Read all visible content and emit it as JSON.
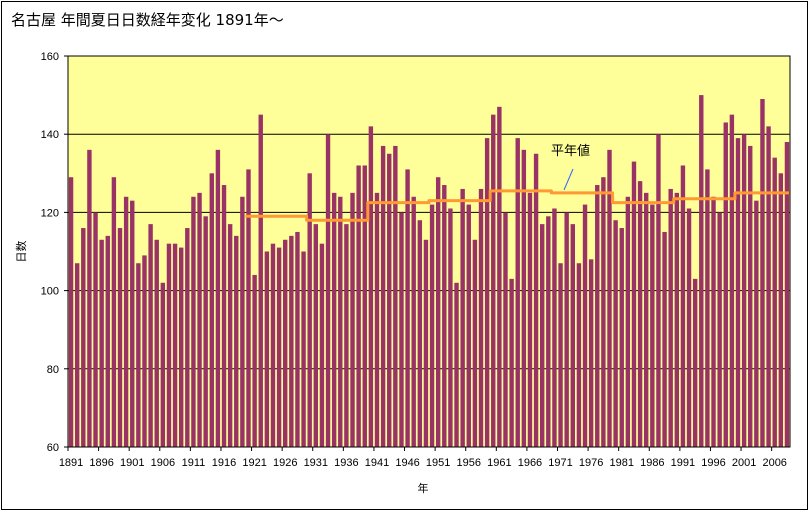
{
  "chart_data": {
    "type": "bar",
    "title": "名古屋  年間夏日日数経年変化  1891年〜",
    "xlabel": "年",
    "ylabel": "日数",
    "ylim": [
      60,
      160
    ],
    "y_ticks": [
      "60",
      "80",
      "100",
      "120",
      "140",
      "160"
    ],
    "grid": "horizontal",
    "x_tick_labels": [
      "1891",
      "1896",
      "1901",
      "1906",
      "1911",
      "1916",
      "1921",
      "1926",
      "1931",
      "1936",
      "1941",
      "1946",
      "1951",
      "1956",
      "1961",
      "1966",
      "1971",
      "1976",
      "1981",
      "1986",
      "1991",
      "1996",
      "2001",
      "2006"
    ],
    "annotation": "平年値",
    "colors": {
      "plot_bg": "#ffff99",
      "bar": "#993366",
      "normal_line": "#ff9933"
    },
    "series": [
      {
        "name": "夏日日数",
        "x": [
          1891,
          1892,
          1893,
          1894,
          1895,
          1896,
          1897,
          1898,
          1899,
          1900,
          1901,
          1902,
          1903,
          1904,
          1905,
          1906,
          1907,
          1908,
          1909,
          1910,
          1911,
          1912,
          1913,
          1914,
          1915,
          1916,
          1917,
          1918,
          1919,
          1920,
          1921,
          1922,
          1923,
          1924,
          1925,
          1926,
          1927,
          1928,
          1929,
          1930,
          1931,
          1932,
          1933,
          1934,
          1935,
          1936,
          1937,
          1938,
          1939,
          1940,
          1941,
          1942,
          1943,
          1944,
          1945,
          1946,
          1947,
          1948,
          1949,
          1950,
          1951,
          1952,
          1953,
          1954,
          1955,
          1956,
          1957,
          1958,
          1959,
          1960,
          1961,
          1962,
          1963,
          1964,
          1965,
          1966,
          1967,
          1968,
          1969,
          1970,
          1971,
          1972,
          1973,
          1974,
          1975,
          1976,
          1977,
          1978,
          1979,
          1980,
          1981,
          1982,
          1983,
          1984,
          1985,
          1986,
          1987,
          1988,
          1989,
          1990,
          1991,
          1992,
          1993,
          1994,
          1995,
          1996,
          1997,
          1998,
          1999,
          2000,
          2001,
          2002,
          2003,
          2004,
          2005,
          2006,
          2007,
          2008
        ],
        "values": [
          129,
          107,
          116,
          136,
          120,
          113,
          114,
          129,
          116,
          124,
          123,
          107,
          109,
          117,
          113,
          102,
          112,
          112,
          111,
          116,
          124,
          125,
          119,
          130,
          136,
          127,
          117,
          114,
          124,
          131,
          104,
          145,
          110,
          112,
          111,
          113,
          114,
          115,
          110,
          130,
          117,
          112,
          140,
          125,
          124,
          117,
          125,
          132,
          132,
          142,
          125,
          137,
          135,
          137,
          120,
          131,
          124,
          118,
          113,
          122,
          129,
          127,
          121,
          102,
          126,
          122,
          113,
          126,
          139,
          145,
          147,
          120,
          103,
          139,
          136,
          125,
          135,
          117,
          119,
          121,
          107,
          120,
          117,
          107,
          122,
          108,
          127,
          129,
          136,
          118,
          116,
          124,
          133,
          128,
          125,
          122,
          140,
          115,
          126,
          125,
          132,
          121,
          103,
          150,
          131,
          124,
          120,
          143,
          145,
          139,
          140,
          137,
          123,
          149,
          142,
          134,
          130,
          138
        ]
      },
      {
        "name": "平年値",
        "x": [
          1920,
          1921,
          1922,
          1923,
          1924,
          1925,
          1926,
          1927,
          1928,
          1929,
          1930,
          1931,
          1932,
          1933,
          1934,
          1935,
          1936,
          1937,
          1938,
          1939,
          1940,
          1941,
          1942,
          1943,
          1944,
          1945,
          1946,
          1947,
          1948,
          1949,
          1950,
          1951,
          1952,
          1953,
          1954,
          1955,
          1956,
          1957,
          1958,
          1959,
          1960,
          1961,
          1962,
          1963,
          1964,
          1965,
          1966,
          1967,
          1968,
          1969,
          1970,
          1971,
          1972,
          1973,
          1974,
          1975,
          1976,
          1977,
          1978,
          1979,
          1980,
          1981,
          1982,
          1983,
          1984,
          1985,
          1986,
          1987,
          1988,
          1989,
          1990,
          1991,
          1992,
          1993,
          1994,
          1995,
          1996,
          1997,
          1998,
          1999,
          2000,
          2001,
          2002,
          2003,
          2004,
          2005,
          2006,
          2007,
          2008
        ],
        "values": [
          119,
          119,
          119,
          119,
          119,
          119,
          119,
          119,
          119,
          119,
          118,
          118,
          118,
          118,
          118,
          118,
          118,
          118,
          118,
          118,
          122.5,
          122.5,
          122.5,
          122.5,
          122.5,
          122.5,
          122.5,
          122.5,
          122.5,
          122.5,
          123,
          123,
          123,
          123,
          123,
          123,
          123,
          123,
          123,
          123,
          125.5,
          125.5,
          125.5,
          125.5,
          125.5,
          125.5,
          125.5,
          125.5,
          125.5,
          125.5,
          125,
          125,
          125,
          125,
          125,
          125,
          125,
          125,
          125,
          125,
          122.5,
          122.5,
          122.5,
          122.5,
          122.5,
          122.5,
          122.5,
          122.5,
          122.5,
          122.5,
          123.5,
          123.5,
          123.5,
          123.5,
          123.5,
          123.5,
          123.5,
          123.5,
          123.5,
          123.5,
          125,
          125,
          125,
          125,
          125,
          125,
          125,
          125,
          125
        ]
      }
    ]
  }
}
